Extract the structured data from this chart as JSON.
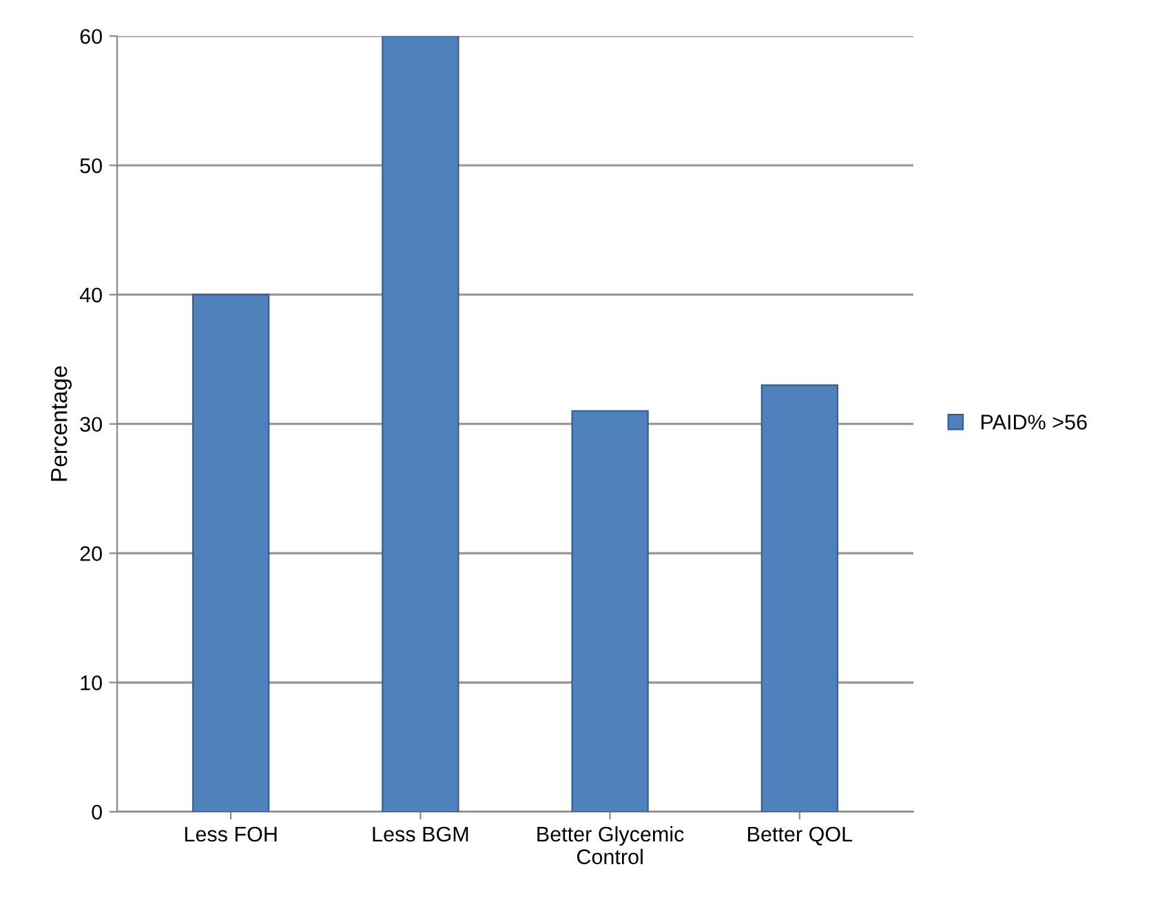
{
  "chart_data": {
    "type": "bar",
    "ylabel": "Percentage",
    "categories": [
      "Less FOH",
      "Less BGM",
      "Better Glycemic\nControl",
      "Better QOL"
    ],
    "series": [
      {
        "name": "PAID% >56",
        "color": "#4f81bd",
        "values": [
          40,
          60,
          31,
          33
        ]
      }
    ],
    "ylim": [
      0,
      60
    ],
    "yticks": [
      0,
      10,
      20,
      30,
      40,
      50,
      60
    ],
    "grid": "y",
    "legend": "right"
  }
}
